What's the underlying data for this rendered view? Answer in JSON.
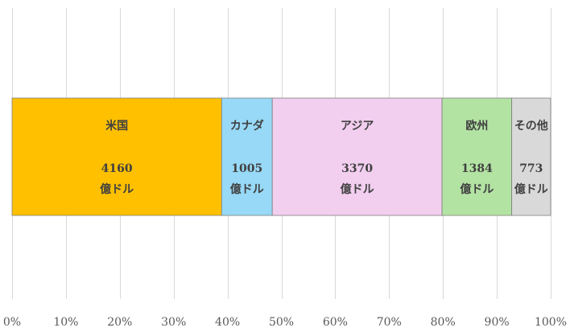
{
  "chart_data": {
    "type": "bar",
    "orientation": "horizontal",
    "stacked": "100%",
    "title": "",
    "xlabel": "",
    "ylabel": "",
    "xlim": [
      0,
      100
    ],
    "x_ticks": [
      "0%",
      "10%",
      "20%",
      "30%",
      "40%",
      "50%",
      "60%",
      "70%",
      "80%",
      "90%",
      "100%"
    ],
    "grid": "vertical",
    "unit": "億ドル",
    "series": [
      {
        "name": "米国",
        "value": 4160,
        "value_text": "4160",
        "unit_text": "億ドル",
        "color": "#FFC000"
      },
      {
        "name": "カナダ",
        "value": 1005,
        "value_text": "1005",
        "unit_text": "億ドル",
        "color": "#97D9F7"
      },
      {
        "name": "アジア",
        "value": 3370,
        "value_text": "3370",
        "unit_text": "億ドル",
        "color": "#F2CEEF"
      },
      {
        "name": "欧州",
        "value": 1384,
        "value_text": "1384",
        "unit_text": "億ドル",
        "color": "#B3E3A3"
      },
      {
        "name": "その他",
        "value": 773,
        "value_text": "773",
        "unit_text": "億ドル",
        "color": "#D9D9D9"
      }
    ]
  }
}
